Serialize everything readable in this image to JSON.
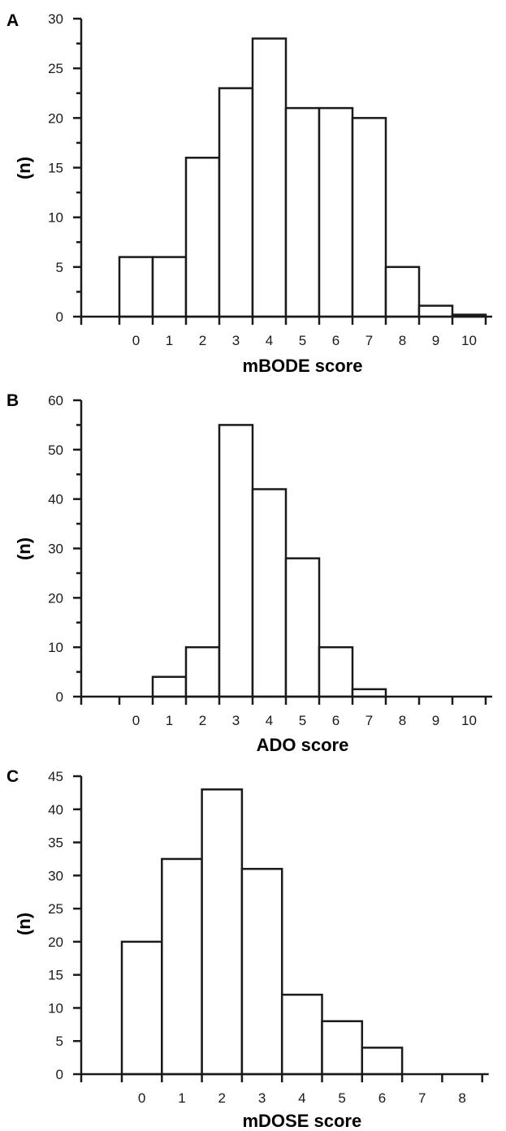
{
  "chart_data": [
    {
      "type": "bar",
      "panel": "A",
      "categories": [
        "0",
        "1",
        "2",
        "3",
        "4",
        "5",
        "6",
        "7",
        "8",
        "9",
        "10"
      ],
      "values": [
        6,
        6,
        16,
        23,
        28,
        21,
        21,
        20,
        5,
        1.1,
        0.2
      ],
      "xlabel": "mBODE score",
      "ylabel": "(n)",
      "ylim": [
        0,
        30
      ],
      "yticks": [
        0,
        5,
        10,
        15,
        20,
        25,
        30
      ]
    },
    {
      "type": "bar",
      "panel": "B",
      "categories": [
        "0",
        "1",
        "2",
        "3",
        "4",
        "5",
        "6",
        "7",
        "8",
        "9",
        "10"
      ],
      "values": [
        0,
        4,
        10,
        55,
        42,
        28,
        10,
        1.5,
        0,
        0,
        0
      ],
      "xlabel": "ADO score",
      "ylabel": "(n)",
      "ylim": [
        0,
        60
      ],
      "yticks": [
        0,
        10,
        20,
        30,
        40,
        50,
        60
      ]
    },
    {
      "type": "bar",
      "panel": "C",
      "categories": [
        "0",
        "1",
        "2",
        "3",
        "4",
        "5",
        "6",
        "7",
        "8"
      ],
      "values": [
        20,
        32.5,
        43,
        31,
        12,
        8,
        4,
        0,
        0
      ],
      "xlabel": "mDOSE score",
      "ylabel": "(n)",
      "ylim": [
        0,
        45
      ],
      "yticks": [
        0,
        5,
        10,
        15,
        20,
        25,
        30,
        35,
        40,
        45
      ]
    }
  ]
}
